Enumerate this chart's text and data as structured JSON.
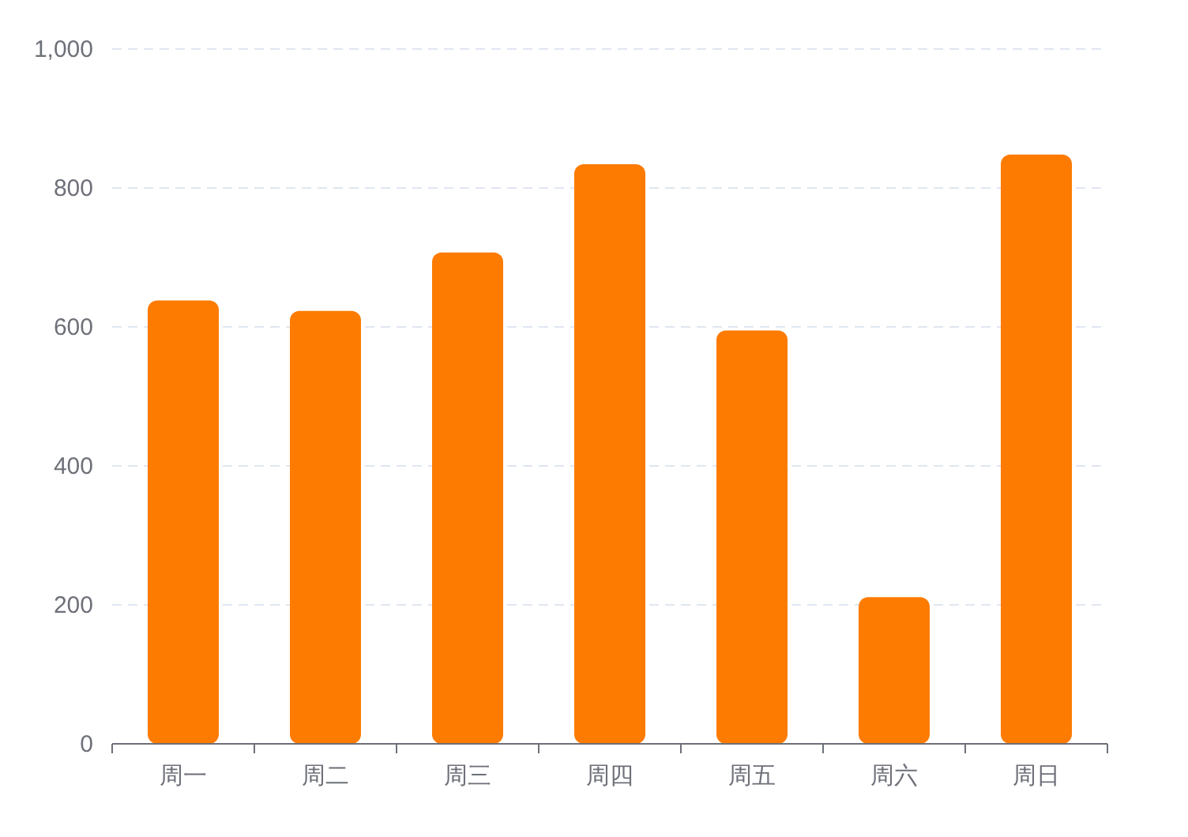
{
  "chart_data": {
    "type": "bar",
    "categories": [
      "周一",
      "周二",
      "周三",
      "周四",
      "周五",
      "周六",
      "周日"
    ],
    "values": [
      638,
      623,
      707,
      834,
      595,
      211,
      848
    ],
    "color": "#fd7b00",
    "ylim": [
      0,
      1000
    ],
    "yticks": [
      {
        "value": 0,
        "label": "0"
      },
      {
        "value": 200,
        "label": "200"
      },
      {
        "value": 400,
        "label": "400"
      },
      {
        "value": 600,
        "label": "600"
      },
      {
        "value": 800,
        "label": "800"
      },
      {
        "value": 1000,
        "label": "1,000"
      }
    ],
    "grid": "y"
  }
}
